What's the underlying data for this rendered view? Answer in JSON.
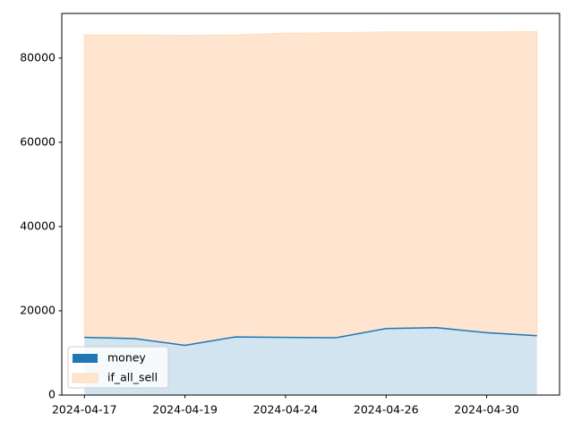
{
  "chart_data": {
    "type": "area",
    "categories": [
      "2024-04-17",
      null,
      "2024-04-19",
      null,
      "2024-04-24",
      null,
      "2024-04-26",
      null,
      "2024-04-30",
      null
    ],
    "series": [
      {
        "name": "money",
        "color": "#1f77b4",
        "values": [
          13700,
          13400,
          11800,
          13800,
          13700,
          13600,
          15800,
          16000,
          14800,
          14100
        ]
      },
      {
        "name": "if_all_sell",
        "color": "#ff7f0e",
        "values": [
          85500,
          85500,
          85400,
          85500,
          85900,
          86000,
          86200,
          86200,
          86200,
          86300
        ]
      }
    ],
    "ylim": [
      0,
      90600
    ],
    "yticks": [
      0,
      20000,
      40000,
      60000,
      80000
    ],
    "legend": "lower left"
  }
}
